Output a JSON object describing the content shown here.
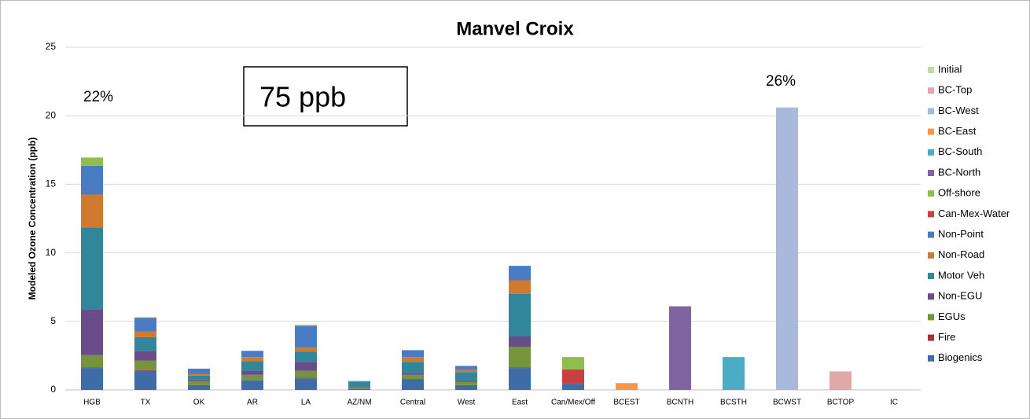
{
  "chart_data": {
    "type": "stacked_bar",
    "title": "Manvel Croix",
    "y_label": "Modeled Ozone Concentration (ppb)",
    "annotations": [
      "22%",
      "26%",
      "75 ppb"
    ],
    "categories": [
      "HGB",
      "TX",
      "OK",
      "AR",
      "LA",
      "AZ/NM",
      "Central",
      "West",
      "East",
      "Can/Mex/Off",
      "BCEST",
      "BCNTH",
      "BCSTH",
      "BCWST",
      "BCTOP",
      "IC"
    ],
    "ylim": [
      0,
      25
    ],
    "yticks": [
      0,
      5,
      10,
      15,
      20,
      25
    ],
    "grid": true,
    "series": [
      {
        "name": "Biogenics",
        "color": "#3e6ca6",
        "values": [
          1.6,
          1.4,
          0.35,
          0.7,
          0.85,
          0.1,
          0.8,
          0.35,
          1.6,
          0.45,
          0,
          0,
          0,
          0,
          0,
          0
        ]
      },
      {
        "name": "Fire",
        "color": "#a83232",
        "values": [
          0.05,
          0.05,
          0,
          0,
          0.05,
          0,
          0,
          0,
          0.05,
          0,
          0,
          0,
          0,
          0,
          0,
          0
        ]
      },
      {
        "name": "EGUs",
        "color": "#77933c",
        "values": [
          0.9,
          0.7,
          0.3,
          0.4,
          0.5,
          0.1,
          0.3,
          0.25,
          1.5,
          0,
          0,
          0,
          0,
          0,
          0,
          0
        ]
      },
      {
        "name": "Non-EGU",
        "color": "#6b4c8a",
        "values": [
          3.3,
          0.7,
          0.1,
          0.3,
          0.65,
          0.05,
          0.15,
          0.1,
          0.75,
          0,
          0,
          0,
          0,
          0,
          0,
          0
        ]
      },
      {
        "name": "Motor Veh",
        "color": "#31869b",
        "values": [
          6.0,
          1.0,
          0.3,
          0.7,
          0.75,
          0.35,
          0.8,
          0.6,
          3.1,
          0,
          0,
          0,
          0,
          0,
          0,
          0
        ]
      },
      {
        "name": "Non-Road",
        "color": "#d07a30",
        "values": [
          2.4,
          0.4,
          0.1,
          0.3,
          0.3,
          0.02,
          0.35,
          0.15,
          1.0,
          0,
          0,
          0,
          0,
          0,
          0,
          0
        ]
      },
      {
        "name": "Non-Point",
        "color": "#4a7cc4",
        "values": [
          2.1,
          1.0,
          0.4,
          0.45,
          1.55,
          0.03,
          0.5,
          0.3,
          1.05,
          0,
          0,
          0,
          0,
          0,
          0,
          0
        ]
      },
      {
        "name": "Can-Mex-Water",
        "color": "#c94040",
        "values": [
          0,
          0,
          0,
          0,
          0,
          0,
          0,
          0,
          0,
          1.05,
          0,
          0,
          0,
          0,
          0,
          0
        ]
      },
      {
        "name": "Off-shore",
        "color": "#8fbf4a",
        "values": [
          0.6,
          0.05,
          0,
          0,
          0.1,
          0,
          0,
          0,
          0,
          0.9,
          0,
          0,
          0,
          0,
          0,
          0
        ]
      },
      {
        "name": "BC-North",
        "color": "#8064a2",
        "values": [
          0,
          0,
          0,
          0,
          0,
          0,
          0,
          0,
          0,
          0,
          0,
          6.1,
          0,
          0,
          0,
          0
        ]
      },
      {
        "name": "BC-South",
        "color": "#4bacc6",
        "values": [
          0,
          0,
          0,
          0,
          0,
          0,
          0,
          0,
          0,
          0,
          0,
          0,
          2.4,
          0,
          0,
          0
        ]
      },
      {
        "name": "BC-East",
        "color": "#f79646",
        "values": [
          0,
          0,
          0,
          0,
          0,
          0,
          0,
          0,
          0,
          0,
          0.5,
          0,
          0,
          0,
          0,
          0
        ]
      },
      {
        "name": "BC-West",
        "color": "#a9b9dc",
        "values": [
          0,
          0,
          0,
          0,
          0,
          0,
          0,
          0,
          0,
          0,
          0,
          0,
          0,
          20.6,
          0,
          0
        ]
      },
      {
        "name": "BC-Top",
        "color": "#e0a8a8",
        "values": [
          0,
          0,
          0,
          0,
          0,
          0,
          0,
          0,
          0,
          0,
          0,
          0,
          0,
          0,
          1.35,
          0
        ]
      },
      {
        "name": "Initial",
        "color": "#c4d9a8",
        "values": [
          0,
          0,
          0,
          0,
          0,
          0,
          0,
          0,
          0,
          0,
          0,
          0,
          0,
          0,
          0,
          0
        ]
      }
    ]
  }
}
